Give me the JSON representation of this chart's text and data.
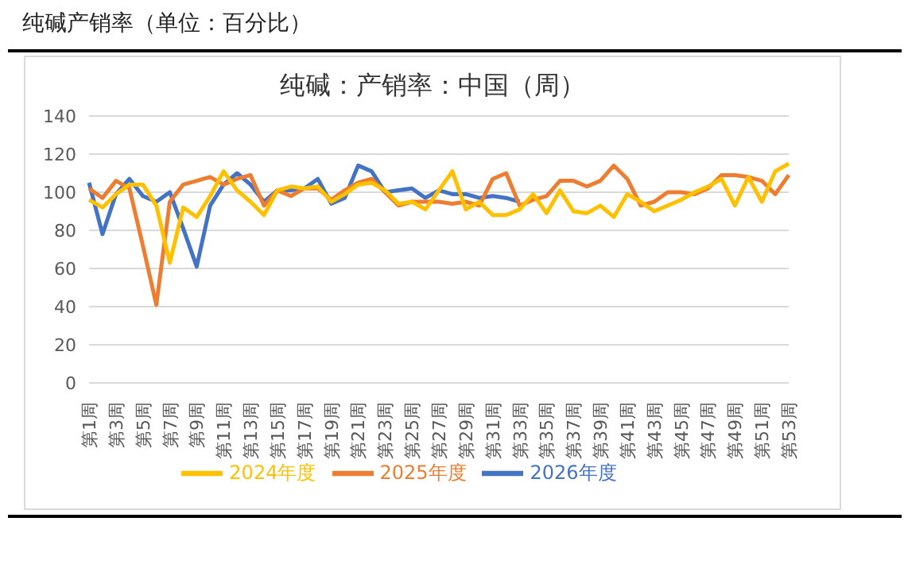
{
  "chart_data": {
    "type": "line",
    "title": "纯碱产销率（单位：百分比）",
    "subtitle": "纯碱：产销率：中国（周）",
    "categories": [
      "第1周",
      null,
      "第3周",
      null,
      "第5周",
      null,
      "第7周",
      null,
      "第9周",
      null,
      "第11周",
      null,
      "第13周",
      null,
      "第15周",
      null,
      "第17周",
      null,
      "第19周",
      null,
      "第21周",
      null,
      "第23周",
      null,
      "第25周",
      null,
      "第27周",
      null,
      "第29周",
      null,
      "第31周",
      null,
      "第33周",
      null,
      "第35周",
      null,
      "第37周",
      null,
      "第39周",
      null,
      "第41周",
      null,
      "第43周",
      null,
      "第45周",
      null,
      "第47周",
      null,
      "第49周",
      null,
      "第51周",
      null,
      "第53周"
    ],
    "series": [
      {
        "name": "2026年度",
        "color": "#4472c4",
        "values": [
          105,
          78,
          99,
          107,
          98,
          95,
          100,
          81,
          61,
          93,
          104,
          110,
          104,
          95,
          101,
          101,
          102,
          107,
          94,
          97,
          114,
          111,
          100,
          101,
          102,
          97,
          101,
          99,
          99,
          97,
          98,
          97,
          95,
          null,
          null,
          null,
          null,
          null,
          null,
          null,
          null,
          null,
          null,
          null,
          null,
          null,
          null,
          null,
          null,
          null,
          null,
          null,
          null
        ]
      },
      {
        "name": "2025年度",
        "color": "#ed7d31",
        "values": [
          102,
          97,
          106,
          102,
          72,
          41,
          95,
          104,
          106,
          108,
          104,
          107,
          109,
          93,
          101,
          98,
          102,
          102,
          96,
          101,
          105,
          107,
          100,
          93,
          95,
          95,
          95,
          94,
          95,
          93,
          107,
          110,
          93,
          96,
          98,
          106,
          106,
          103,
          106,
          114,
          107,
          93,
          95,
          100,
          100,
          99,
          102,
          109,
          109,
          108,
          106,
          99,
          109
        ]
      },
      {
        "name": "2024年度",
        "color": "#ffc000",
        "values": [
          96,
          92,
          99,
          104,
          104,
          93,
          63,
          92,
          87,
          98,
          111,
          101,
          95,
          88,
          101,
          103,
          102,
          103,
          95,
          99,
          104,
          105,
          101,
          94,
          95,
          91,
          101,
          111,
          91,
          95,
          88,
          88,
          91,
          99,
          89,
          101,
          90,
          89,
          93,
          87,
          99,
          95,
          90,
          93,
          96,
          100,
          103,
          107,
          93,
          108,
          95,
          111,
          115
        ]
      }
    ],
    "ylim": [
      0,
      140
    ],
    "yticks": [
      0,
      20,
      40,
      60,
      80,
      100,
      120,
      140
    ],
    "grid": "y",
    "legend": "bottom",
    "marker": "none",
    "line_style": "solid"
  }
}
